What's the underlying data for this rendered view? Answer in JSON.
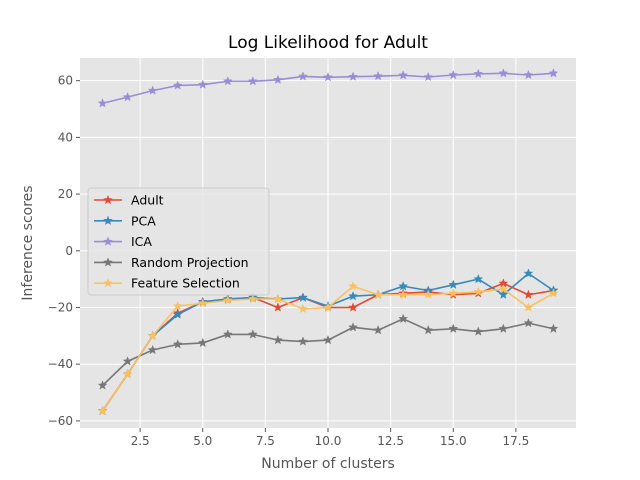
{
  "chart_data": {
    "type": "line",
    "title": "Log Likelihood for Adult",
    "xlabel": "Number of clusters",
    "ylabel": "Inference scores",
    "xlim": [
      0.1,
      19.9
    ],
    "ylim": [
      -62.5,
      68
    ],
    "xticks": [
      2.5,
      5.0,
      7.5,
      10.0,
      12.5,
      15.0,
      17.5
    ],
    "xtick_labels": [
      "2.5",
      "5.0",
      "7.5",
      "10.0",
      "12.5",
      "15.0",
      "17.5"
    ],
    "yticks": [
      -60,
      -40,
      -20,
      0,
      20,
      40,
      60
    ],
    "ytick_labels": [
      "−60",
      "−40",
      "−20",
      "0",
      "20",
      "40",
      "60"
    ],
    "grid": true,
    "legend_position": "center-left",
    "marker": "star",
    "x": [
      1,
      2,
      3,
      4,
      5,
      6,
      7,
      8,
      9,
      10,
      11,
      12,
      13,
      14,
      15,
      16,
      17,
      18,
      19
    ],
    "series": [
      {
        "name": "Adult",
        "color": "#e24a33",
        "values": [
          -56.5,
          -43.5,
          -30,
          -22,
          -18,
          -17,
          -16.5,
          -20,
          -16.5,
          -20,
          -20,
          -15.5,
          -15,
          -14.5,
          -15.5,
          -15,
          -11.5,
          -15.5,
          -14
        ]
      },
      {
        "name": "PCA",
        "color": "#348abd",
        "values": [
          -56.5,
          -43.5,
          -30,
          -22.5,
          -18,
          -17,
          -16.5,
          -17,
          -16.5,
          -19.5,
          -16,
          -15.5,
          -12.5,
          -14,
          -12,
          -10,
          -15.5,
          -8,
          -14
        ]
      },
      {
        "name": "ICA",
        "color": "#988ed5",
        "values": [
          52,
          54.2,
          56.5,
          58.3,
          58.6,
          59.8,
          59.8,
          60.3,
          61.5,
          61.2,
          61.4,
          61.6,
          61.9,
          61.3,
          62,
          62.4,
          62.6,
          62,
          62.6
        ]
      },
      {
        "name": "Random Projection",
        "color": "#777777",
        "values": [
          -47.5,
          -39,
          -35,
          -33,
          -32.5,
          -29.5,
          -29.5,
          -31.5,
          -32,
          -31.5,
          -27,
          -28,
          -24,
          -28,
          -27.5,
          -28.5,
          -27.5,
          -25.5,
          -27.5
        ]
      },
      {
        "name": "Feature Selection",
        "color": "#fbc15e",
        "values": [
          -56.5,
          -43.5,
          -30,
          -19.5,
          -18.5,
          -17.5,
          -17,
          -17,
          -20.5,
          -20,
          -12.5,
          -15.5,
          -15.5,
          -15.5,
          -15,
          -14.5,
          -13.5,
          -20,
          -15
        ]
      }
    ]
  }
}
